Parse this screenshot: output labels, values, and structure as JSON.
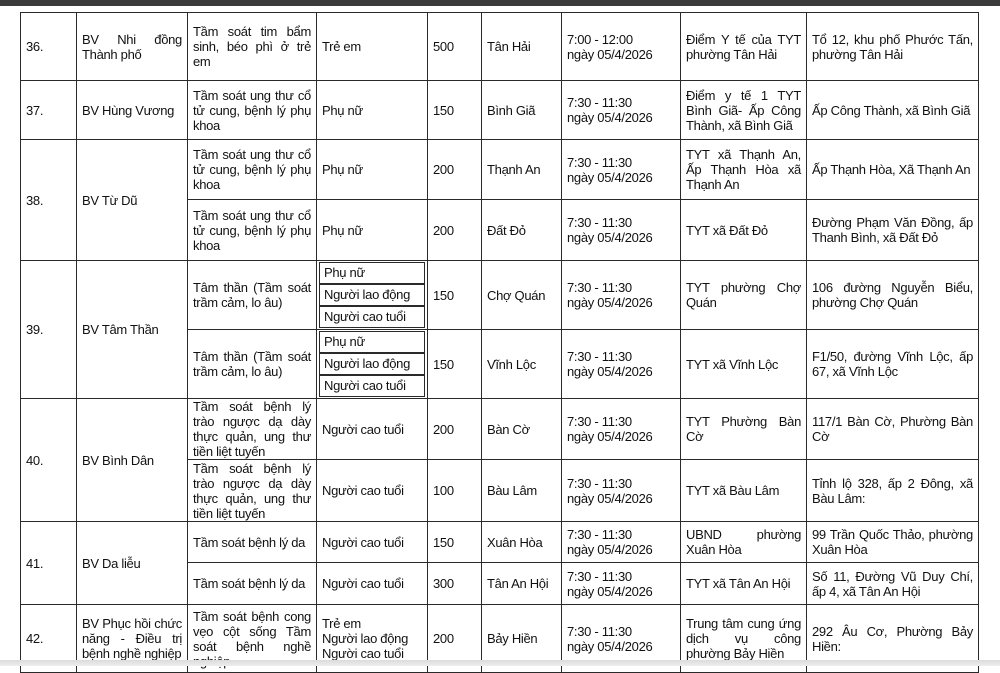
{
  "rows": [
    {
      "stt": "36.",
      "hospital": "BV Nhi đồng Thành phố",
      "sub": [
        {
          "content": "Tầm soát tim bẩm sinh, béo phì ở trẻ em",
          "target": "Trẻ em",
          "qty": "500",
          "location": "Tân Hải",
          "time": "7:00 - 12:00\nngày 05/4/2026",
          "place": "Điểm Y tế của TYT phường Tân Hải",
          "address": "Tổ 12, khu phố Phước Tấn, phường Tân Hải"
        }
      ]
    },
    {
      "stt": "37.",
      "hospital": "BV Hùng Vương",
      "sub": [
        {
          "content": "Tầm soát ung thư cổ tử cung, bệnh lý phụ khoa",
          "target": "Phụ nữ",
          "qty": "150",
          "location": "Bình Giã",
          "time": "7:30 - 11:30\nngày 05/4/2026",
          "place": "Điểm y tế 1 TYT Bình Giã- Ấp Công Thành, xã Bình Giã",
          "address": "Ấp Công Thành, xã Bình Giã"
        }
      ]
    },
    {
      "stt": "38.",
      "hospital": "BV Từ Dũ",
      "sub": [
        {
          "content": "Tầm soát ung thư cổ tử cung, bệnh lý phụ khoa",
          "target": "Phụ nữ",
          "qty": "200",
          "location": "Thạnh An",
          "time": "7:30 - 11:30\nngày 05/4/2026",
          "place": "TYT xã Thạnh An, Ấp Thạnh Hòa xã Thạnh An",
          "address": "Ấp Thạnh Hòa, Xã Thạnh An"
        },
        {
          "content": "Tầm soát ung thư cổ tử cung, bệnh lý phụ khoa",
          "target": "Phụ nữ",
          "qty": "200",
          "location": "Đất Đỏ",
          "time": "7:30 - 11:30\nngày 05/4/2026",
          "place": "TYT xã Đất Đỏ",
          "address": "Đường Phạm Văn Đồng, ấp Thanh Bình, xã Đất Đỏ"
        }
      ]
    },
    {
      "stt": "39.",
      "hospital": "BV Tâm Thần",
      "sub": [
        {
          "content": "Tâm thần (Tầm soát trầm cảm, lo âu)",
          "target": [
            "Phụ nữ",
            "Người lao động",
            "Người cao tuổi"
          ],
          "qty": "150",
          "location": "Chợ Quán",
          "time": "7:30 - 11:30\nngày 05/4/2026",
          "place": "TYT phường Chợ Quán",
          "address": "106 đường Nguyễn Biểu, phường Chợ Quán"
        },
        {
          "content": "Tâm thần (Tầm soát trầm cảm, lo âu)",
          "target": [
            "Phụ nữ",
            "Người lao động",
            "Người cao tuổi"
          ],
          "qty": "150",
          "location": "Vĩnh Lộc",
          "time": "7:30 - 11:30\nngày 05/4/2026",
          "place": "TYT xã Vĩnh Lộc",
          "address": "F1/50, đường Vĩnh Lộc, ấp 67, xã Vĩnh Lộc"
        }
      ]
    },
    {
      "stt": "40.",
      "hospital": "BV Bình Dân",
      "sub": [
        {
          "content": "Tầm soát bệnh lý trào ngược dạ dày thực quản, ung thư tiền liệt tuyến",
          "target": "Người cao tuổi",
          "qty": "200",
          "location": "Bàn Cờ",
          "time": "7:30 - 11:30\nngày 05/4/2026",
          "place": "TYT Phường Bàn Cờ",
          "address": "117/1 Bàn Cờ, Phường Bàn Cờ"
        },
        {
          "content": "Tầm soát bệnh lý trào ngược dạ dày thực quản, ung thư tiền liệt tuyến",
          "target": "Người cao tuổi",
          "qty": "100",
          "location": "Bàu Lâm",
          "time": "7:30 - 11:30\nngày 05/4/2026",
          "place": "TYT xã Bàu Lâm",
          "address": "Tỉnh lộ 328, ấp 2 Đông, xã Bàu Lâm:"
        }
      ]
    },
    {
      "stt": "41.",
      "hospital": "BV Da liễu",
      "sub": [
        {
          "content": "Tầm soát bệnh lý da",
          "target": "Người cao tuổi",
          "qty": "150",
          "location": "Xuân Hòa",
          "time": "7:30 - 11:30\nngày 05/4/2026",
          "place": "UBND phường Xuân Hòa",
          "address": "99 Trần Quốc Thảo, phường Xuân Hòa"
        },
        {
          "content": "Tầm soát bệnh lý da",
          "target": "Người cao tuổi",
          "qty": "300",
          "location": "Tân An Hội",
          "time": "7:30 - 11:30\nngày 05/4/2026",
          "place": "TYT xã Tân An Hội",
          "address": "Số 11, Đường Vũ Duy Chí, ấp 4, xã Tân An Hội"
        }
      ]
    },
    {
      "stt": "42.",
      "hospital": "BV Phục hồi chức năng - Điều trị bệnh nghề nghiệp",
      "sub": [
        {
          "content": "Tầm soát bệnh cong vẹo cột sống Tầm soát bệnh nghề nghiệp",
          "target": "Trẻ em\nNgười lao động\nNgười cao tuổi",
          "qty": "200",
          "location": "Bảy Hiền",
          "time": "7:30 - 11:30\nngày 05/4/2026",
          "place": "Trung tâm cung ứng dịch vụ công phường Bảy Hiền",
          "address": "292 Âu Cơ, Phường Bảy Hiền:"
        }
      ]
    }
  ]
}
